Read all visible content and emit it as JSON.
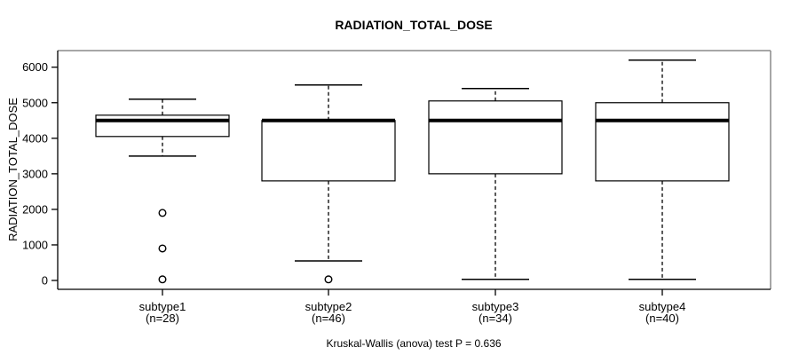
{
  "chart_data": {
    "type": "boxplot",
    "title": "RADIATION_TOTAL_DOSE",
    "ylabel": "RADIATION_TOTAL_DOSE",
    "xlabel": "",
    "footer": "Kruskal-Wallis (anova) test P = 0.636",
    "p_value": 0.636,
    "ylim": [
      0,
      6200
    ],
    "yticks": [
      0,
      1000,
      2000,
      3000,
      4000,
      5000,
      6000
    ],
    "grid": false,
    "legend": "none",
    "boxes": [
      {
        "category": "subtype1",
        "sublabel": "(n=28)",
        "n": 28,
        "whisker_low": 3500,
        "q1": 4050,
        "median": 4500,
        "q3": 4650,
        "whisker_high": 5100,
        "outliers": [
          1900,
          900,
          30
        ]
      },
      {
        "category": "subtype2",
        "sublabel": "(n=46)",
        "n": 46,
        "whisker_low": 550,
        "q1": 2800,
        "median": 4500,
        "q3": 4500,
        "whisker_high": 5500,
        "outliers": [
          30
        ]
      },
      {
        "category": "subtype3",
        "sublabel": "(n=34)",
        "n": 34,
        "whisker_low": 30,
        "q1": 3000,
        "median": 4500,
        "q3": 5050,
        "whisker_high": 5400,
        "outliers": []
      },
      {
        "category": "subtype4",
        "sublabel": "(n=40)",
        "n": 40,
        "whisker_low": 30,
        "q1": 2800,
        "median": 4500,
        "q3": 5000,
        "whisker_high": 6200,
        "outliers": []
      }
    ],
    "colors": {
      "background": "#ffffff",
      "box_fill": "#ffffff",
      "stroke": "#000000",
      "frame_gray": "#8a8a8a",
      "text": "#000000"
    }
  }
}
